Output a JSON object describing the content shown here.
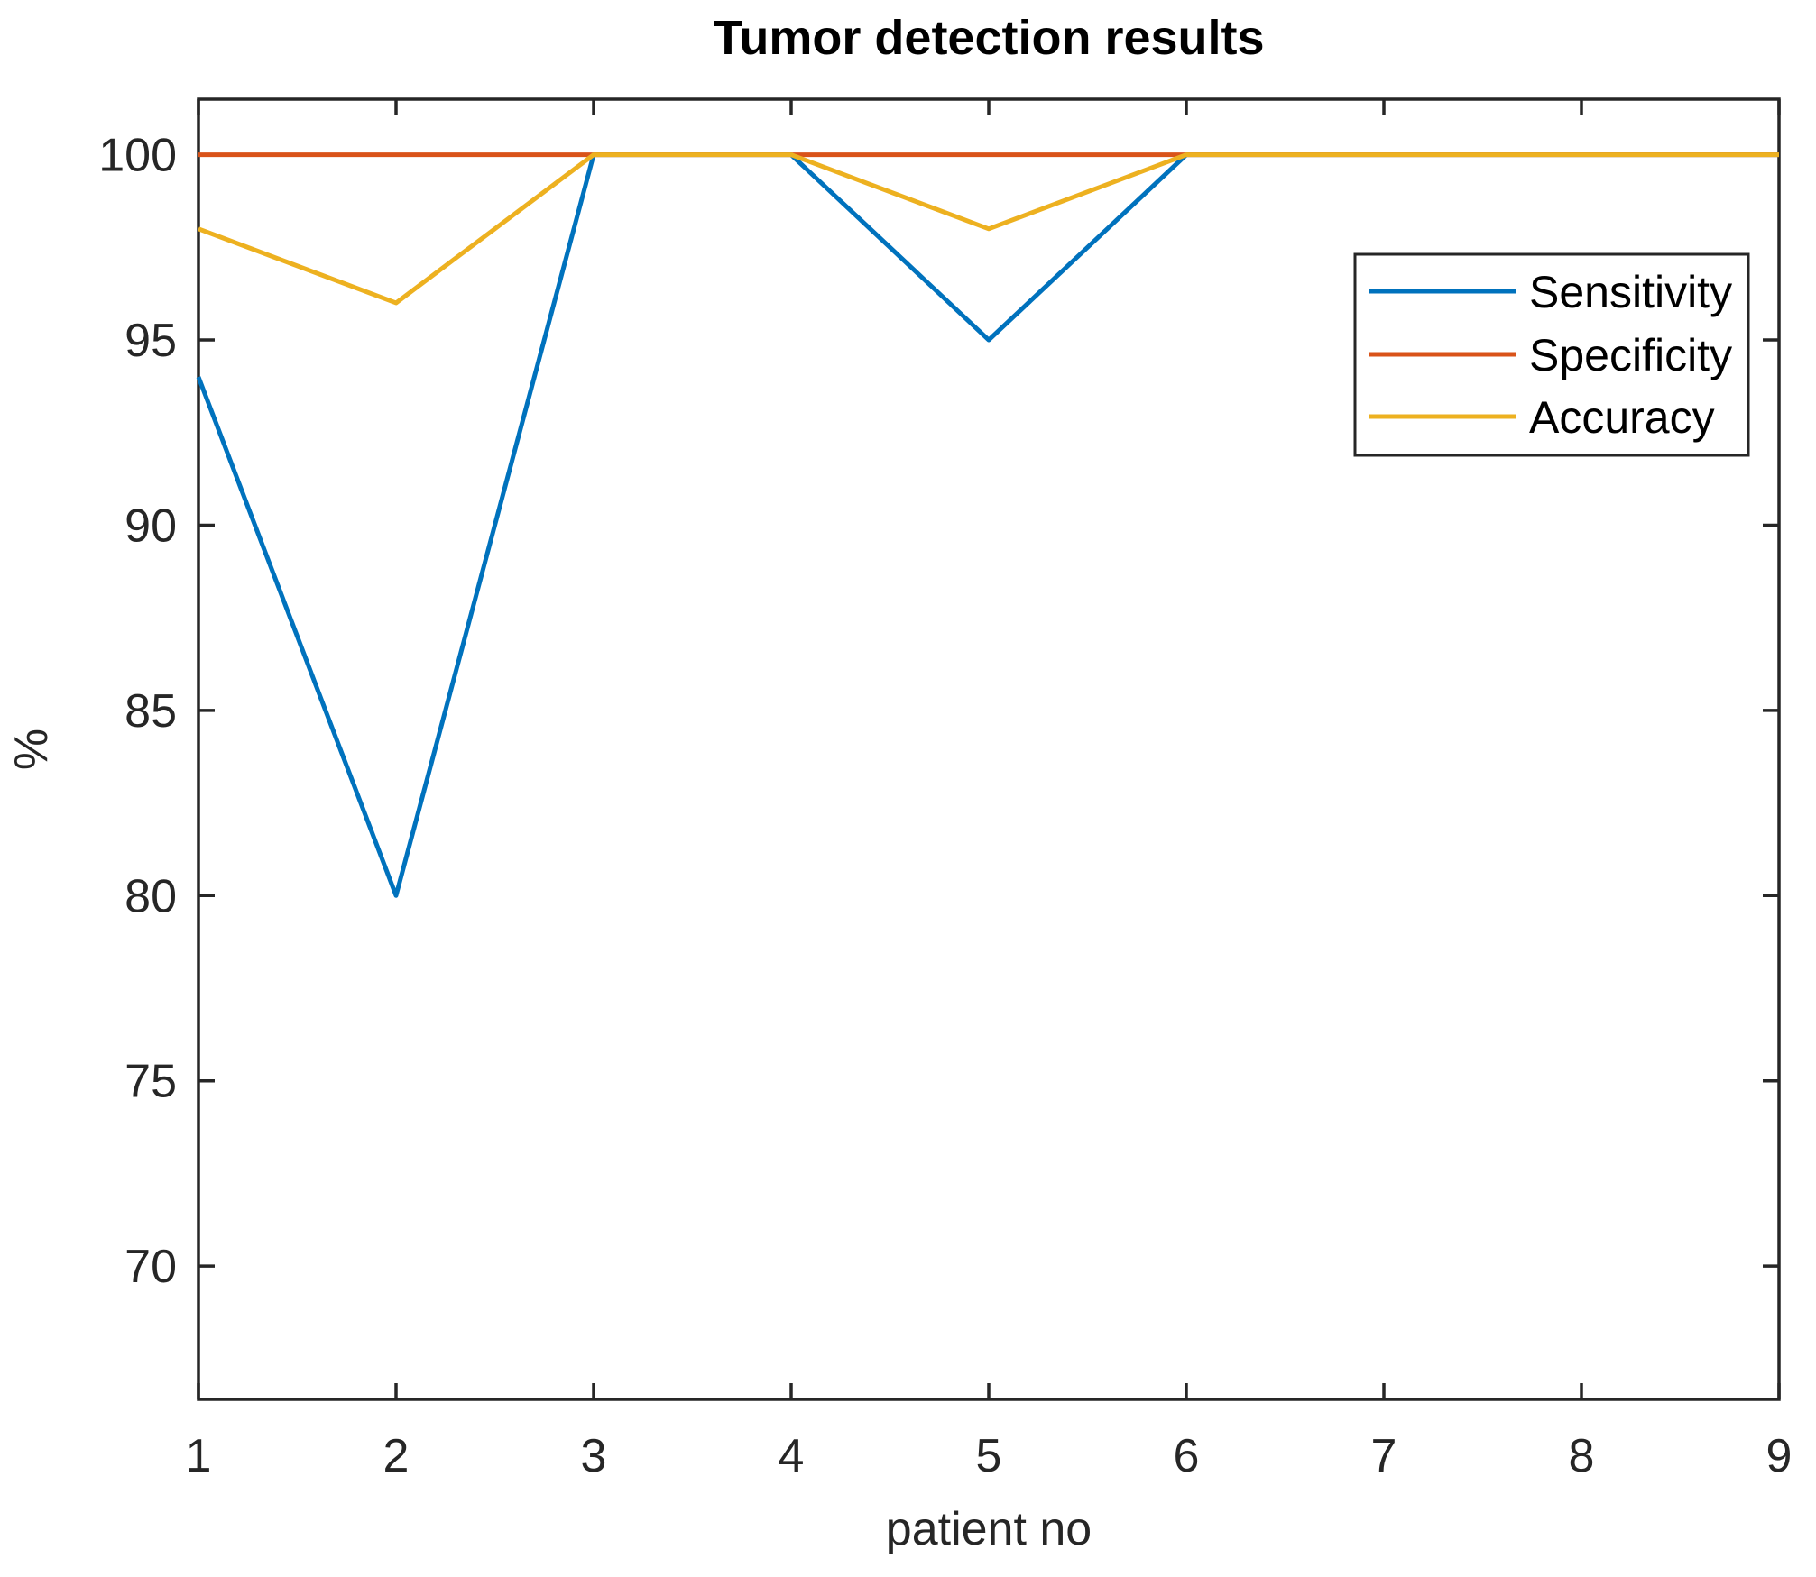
{
  "chart_data": {
    "type": "line",
    "title": "Tumor detection results",
    "xlabel": "patient no",
    "ylabel": "%",
    "x": [
      1,
      2,
      3,
      4,
      5,
      6,
      7,
      8,
      9
    ],
    "xticks": [
      "1",
      "2",
      "3",
      "4",
      "5",
      "6",
      "7",
      "8",
      "9"
    ],
    "yticks": [
      "70",
      "75",
      "80",
      "85",
      "90",
      "95",
      "100"
    ],
    "ytick_values": [
      70,
      75,
      80,
      85,
      90,
      95,
      100
    ],
    "xlim": [
      1,
      9
    ],
    "ylim": [
      66.4,
      101.5
    ],
    "grid": false,
    "legend_position": "upper-right-inside",
    "series": [
      {
        "name": "Sensitivity",
        "color": "#0072BD",
        "values": [
          94,
          80,
          100,
          100,
          95,
          100,
          100,
          100,
          100
        ]
      },
      {
        "name": "Specificity",
        "color": "#D95319",
        "values": [
          100,
          100,
          100,
          100,
          100,
          100,
          100,
          100,
          100
        ]
      },
      {
        "name": "Accuracy",
        "color": "#EDB120",
        "values": [
          98,
          96,
          100,
          100,
          98,
          100,
          100,
          100,
          100
        ]
      }
    ],
    "axis_color": "#262626",
    "title_color": "#000000",
    "background_color": "#FFFFFF",
    "line_width": 5
  }
}
